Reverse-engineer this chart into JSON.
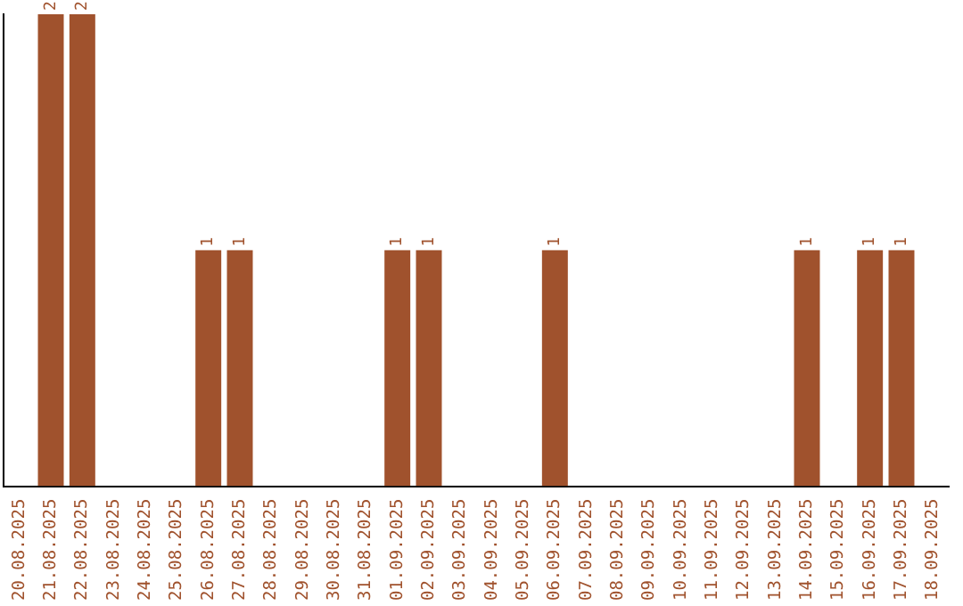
{
  "chart_data": {
    "type": "bar",
    "categories": [
      "20.08.2025",
      "21.08.2025",
      "22.08.2025",
      "23.08.2025",
      "24.08.2025",
      "25.08.2025",
      "26.08.2025",
      "27.08.2025",
      "28.08.2025",
      "29.08.2025",
      "30.08.2025",
      "31.08.2025",
      "01.09.2025",
      "02.09.2025",
      "03.09.2025",
      "04.09.2025",
      "05.09.2025",
      "06.09.2025",
      "07.09.2025",
      "08.09.2025",
      "09.09.2025",
      "10.09.2025",
      "11.09.2025",
      "12.09.2025",
      "13.09.2025",
      "14.09.2025",
      "15.09.2025",
      "16.09.2025",
      "17.09.2025",
      "18.09.2025"
    ],
    "values": [
      0,
      2,
      2,
      0,
      0,
      0,
      1,
      1,
      0,
      0,
      0,
      0,
      1,
      1,
      0,
      0,
      0,
      1,
      0,
      0,
      0,
      0,
      0,
      0,
      0,
      1,
      0,
      1,
      1,
      0
    ],
    "value_labels": [
      null,
      "2",
      "2",
      null,
      null,
      null,
      "1",
      "1",
      null,
      null,
      null,
      null,
      "1",
      "1",
      null,
      null,
      null,
      "1",
      null,
      null,
      null,
      null,
      null,
      null,
      null,
      "1",
      null,
      "1",
      "1",
      null
    ],
    "color": "#a0522d",
    "grid": false,
    "legend": false,
    "tick_labels": "x"
  }
}
